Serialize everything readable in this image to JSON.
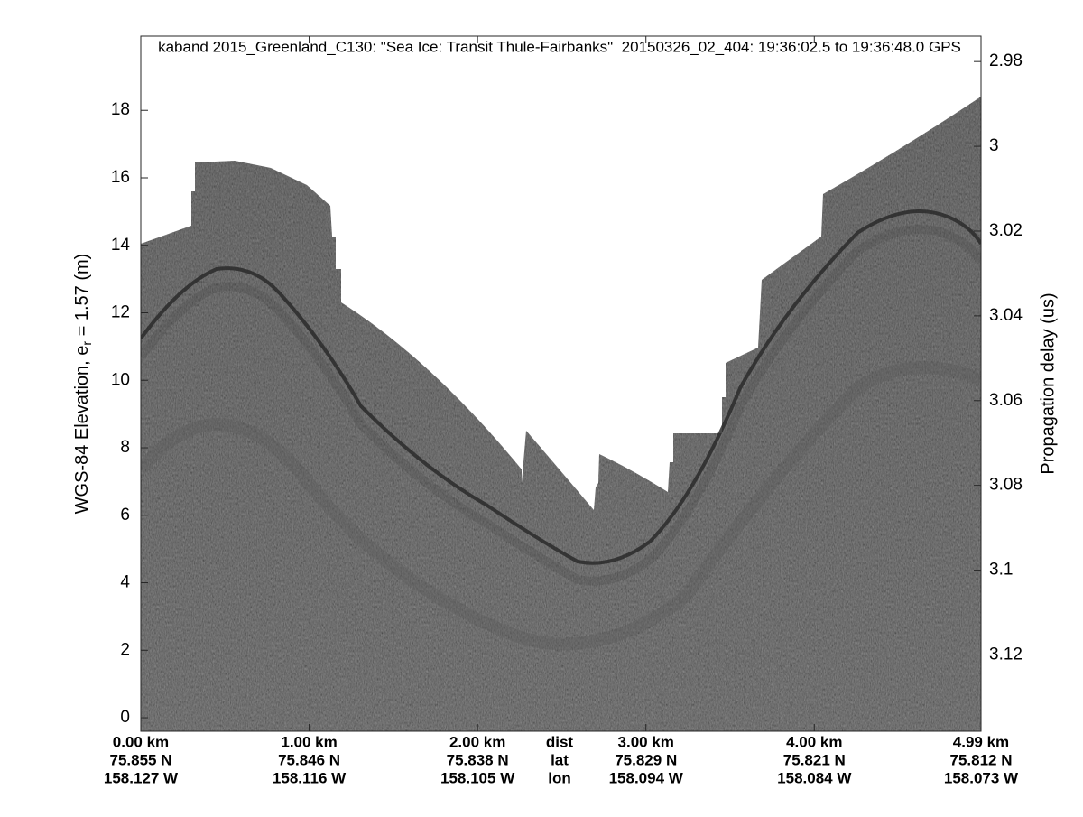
{
  "chart_data": {
    "type": "echogram",
    "title": "kaband 2015_Greenland_C130: \"Sea Ice: Transit Thule-Fairbanks\"  20150326_02_404: 19:36:02.5 to 19:36:48.0 GPS",
    "ylabel": {
      "text": "WGS-84 Elevation, e",
      "subscript": "r",
      "suffix": " = 1.57 (m)"
    },
    "y2label": "Propagation delay (us)",
    "ylim": [
      -0.4,
      20.2
    ],
    "yticks": [
      0,
      2,
      4,
      6,
      8,
      10,
      12,
      14,
      16,
      18
    ],
    "y2lim": [
      3.138,
      2.974
    ],
    "y2ticks": [
      2.98,
      3,
      3.02,
      3.04,
      3.06,
      3.08,
      3.1,
      3.12
    ],
    "xlim": [
      0,
      4.99
    ],
    "xticks": [
      {
        "value": 0,
        "label": "0.00 km"
      },
      {
        "value": 1,
        "label": "1.00 km"
      },
      {
        "value": 2,
        "label": "2.00 km"
      },
      {
        "value": 3,
        "label": "3.00 km"
      },
      {
        "value": 4,
        "label": "4.00 km"
      },
      {
        "value": 4.99,
        "label": "4.99 km"
      }
    ],
    "row_labels": [
      "dist",
      "lat",
      "lon"
    ],
    "lat_labels": [
      "75.855 N",
      "75.846 N",
      "75.838 N",
      "75.829 N",
      "75.821 N",
      "75.812 N"
    ],
    "lon_labels": [
      "158.127 W",
      "158.116 W",
      "158.105 W",
      "158.094 W",
      "158.084 W",
      "158.073 W"
    ]
  }
}
